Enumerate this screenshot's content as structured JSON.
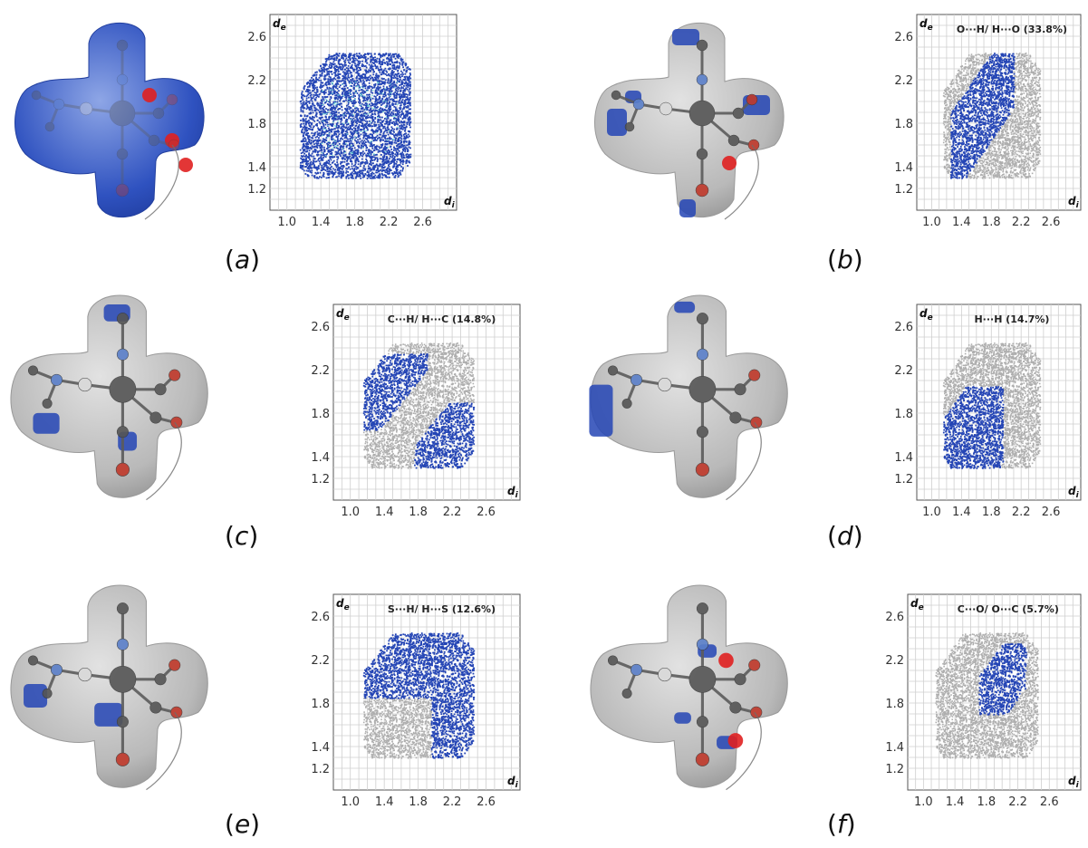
{
  "colors": {
    "surface_grey": "#b9b9b9",
    "surface_blue": "#2f52c0",
    "contact_red": "#e02020",
    "highlight_blue": "#2445b5",
    "background_points": "#aeaeae",
    "atom_dark": "#555555",
    "atom_nitrogen": "#5a7fc9",
    "atom_oxygen": "#c0392b",
    "atom_sulfur": "#d9d9d9"
  },
  "panels": [
    {
      "id": "a",
      "label": "a",
      "plot_title": "",
      "surface": "dnorm",
      "pattern": "full"
    },
    {
      "id": "b",
      "label": "b",
      "plot_title": "O···H/ H···O (33.8%)",
      "surface": "grey",
      "pattern": "OH"
    },
    {
      "id": "c",
      "label": "c",
      "plot_title": "C···H/ H···C (14.8%)",
      "surface": "grey",
      "pattern": "CH"
    },
    {
      "id": "d",
      "label": "d",
      "plot_title": "H···H (14.7%)",
      "surface": "grey",
      "pattern": "HH"
    },
    {
      "id": "e",
      "label": "e",
      "plot_title": "S···H/ H···S (12.6%)",
      "surface": "grey",
      "pattern": "SH"
    },
    {
      "id": "f",
      "label": "f",
      "plot_title": "C···O/ O···C (5.7%)",
      "surface": "grey",
      "pattern": "CO"
    }
  ],
  "chart_data": [
    {
      "type": "scatter",
      "panel": "a",
      "title": "",
      "xlabel": "di",
      "ylabel": "de",
      "xticks": [
        "1.0",
        "1.4",
        "1.8",
        "2.2",
        "2.6"
      ],
      "yticks": [
        "1.2",
        "1.4",
        "1.8",
        "2.2",
        "2.6"
      ],
      "xlim": [
        0.8,
        3.0
      ],
      "ylim": [
        1.0,
        2.8
      ],
      "grid": true,
      "highlight_fraction": 1.0
    },
    {
      "type": "scatter",
      "panel": "b",
      "title": "O···H/ H···O (33.8%)",
      "xlabel": "di",
      "ylabel": "de",
      "xticks": [
        "1.0",
        "1.4",
        "1.8",
        "2.2",
        "2.6"
      ],
      "yticks": [
        "1.2",
        "1.4",
        "1.8",
        "2.2",
        "2.6"
      ],
      "xlim": [
        0.8,
        3.0
      ],
      "ylim": [
        1.0,
        2.8
      ],
      "grid": true,
      "highlight_fraction": 0.338
    },
    {
      "type": "scatter",
      "panel": "c",
      "title": "C···H/ H···C (14.8%)",
      "xlabel": "di",
      "ylabel": "de",
      "xticks": [
        "1.0",
        "1.4",
        "1.8",
        "2.2",
        "2.6"
      ],
      "yticks": [
        "1.2",
        "1.4",
        "1.8",
        "2.2",
        "2.6"
      ],
      "xlim": [
        0.8,
        3.0
      ],
      "ylim": [
        1.0,
        2.8
      ],
      "grid": true,
      "highlight_fraction": 0.148
    },
    {
      "type": "scatter",
      "panel": "d",
      "title": "H···H (14.7%)",
      "xlabel": "di",
      "ylabel": "de",
      "xticks": [
        "1.0",
        "1.4",
        "1.8",
        "2.2",
        "2.6"
      ],
      "yticks": [
        "1.2",
        "1.4",
        "1.8",
        "2.2",
        "2.6"
      ],
      "xlim": [
        0.8,
        3.0
      ],
      "ylim": [
        1.0,
        2.8
      ],
      "grid": true,
      "highlight_fraction": 0.147
    },
    {
      "type": "scatter",
      "panel": "e",
      "title": "S···H/ H···S (12.6%)",
      "xlabel": "di",
      "ylabel": "de",
      "xticks": [
        "1.0",
        "1.4",
        "1.8",
        "2.2",
        "2.6"
      ],
      "yticks": [
        "1.2",
        "1.4",
        "1.8",
        "2.2",
        "2.6"
      ],
      "xlim": [
        0.8,
        3.0
      ],
      "ylim": [
        1.0,
        2.8
      ],
      "grid": true,
      "highlight_fraction": 0.126
    },
    {
      "type": "scatter",
      "panel": "f",
      "title": "C···O/ O···C (5.7%)",
      "xlabel": "di",
      "ylabel": "de",
      "xticks": [
        "1.0",
        "1.4",
        "1.8",
        "2.2",
        "2.6"
      ],
      "yticks": [
        "1.2",
        "1.4",
        "1.8",
        "2.2",
        "2.6"
      ],
      "xlim": [
        0.8,
        3.0
      ],
      "ylim": [
        1.0,
        2.8
      ],
      "grid": true,
      "highlight_fraction": 0.057
    }
  ]
}
